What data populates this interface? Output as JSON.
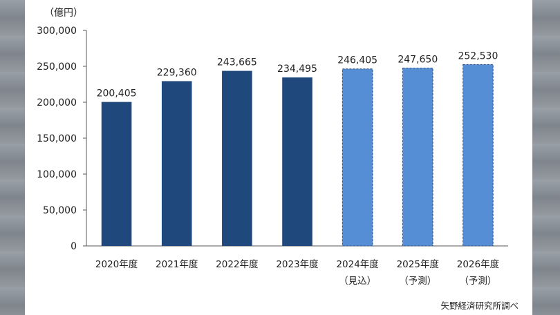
{
  "source_note": "矢野経済研究所調べ",
  "colors": {
    "actual": "#1f497d",
    "forecast": "#558ed5"
  },
  "chart_data": {
    "type": "bar",
    "title": "",
    "xlabel": "",
    "ylabel": "（億円）",
    "ylim": [
      0,
      300000
    ],
    "yticks": [
      "0",
      "50,000",
      "100,000",
      "150,000",
      "200,000",
      "250,000",
      "300,000"
    ],
    "categories": [
      [
        "2020年度"
      ],
      [
        "2021年度"
      ],
      [
        "2022年度"
      ],
      [
        "2023年度"
      ],
      [
        "2024年度",
        "（見込）"
      ],
      [
        "2025年度",
        "（予測）"
      ],
      [
        "2026年度",
        "（予測）"
      ]
    ],
    "values": [
      200405,
      229360,
      243665,
      234495,
      246405,
      247650,
      252530
    ],
    "value_labels": [
      "200,405",
      "229,360",
      "243,665",
      "234,495",
      "246,405",
      "247,650",
      "252,530"
    ],
    "bar_style": [
      "actual",
      "actual",
      "actual",
      "actual",
      "forecast",
      "forecast",
      "forecast"
    ],
    "grid": false,
    "legend": "none"
  }
}
